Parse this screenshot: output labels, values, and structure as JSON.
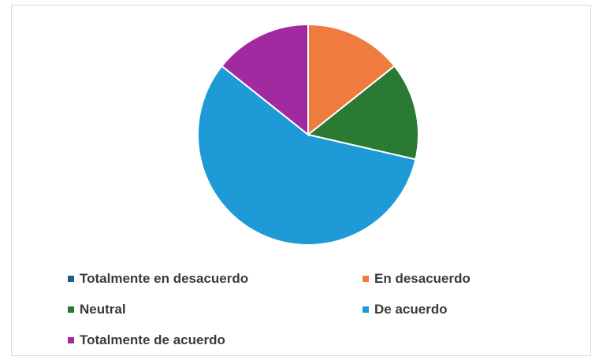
{
  "chart_data": {
    "type": "pie",
    "title": "",
    "categories": [
      "Totalmente en desacuerdo",
      "En desacuerdo",
      "Neutral",
      "De acuerdo",
      "Totalmente de acuerdo"
    ],
    "values": [
      0,
      14.3,
      14.3,
      57.1,
      14.3
    ],
    "colors": [
      "#1f5f86",
      "#f07b3f",
      "#2a7a33",
      "#1e9ad6",
      "#a12aa1"
    ],
    "legend": "bottom"
  },
  "legend_items": [
    {
      "label": "Totalmente en desacuerdo",
      "color": "#1f5f86"
    },
    {
      "label": "En desacuerdo",
      "color": "#f07b3f"
    },
    {
      "label": "Neutral",
      "color": "#2a7a33"
    },
    {
      "label": "De acuerdo",
      "color": "#1e9ad6"
    },
    {
      "label": "Totalmente de acuerdo",
      "color": "#a12aa1"
    }
  ]
}
